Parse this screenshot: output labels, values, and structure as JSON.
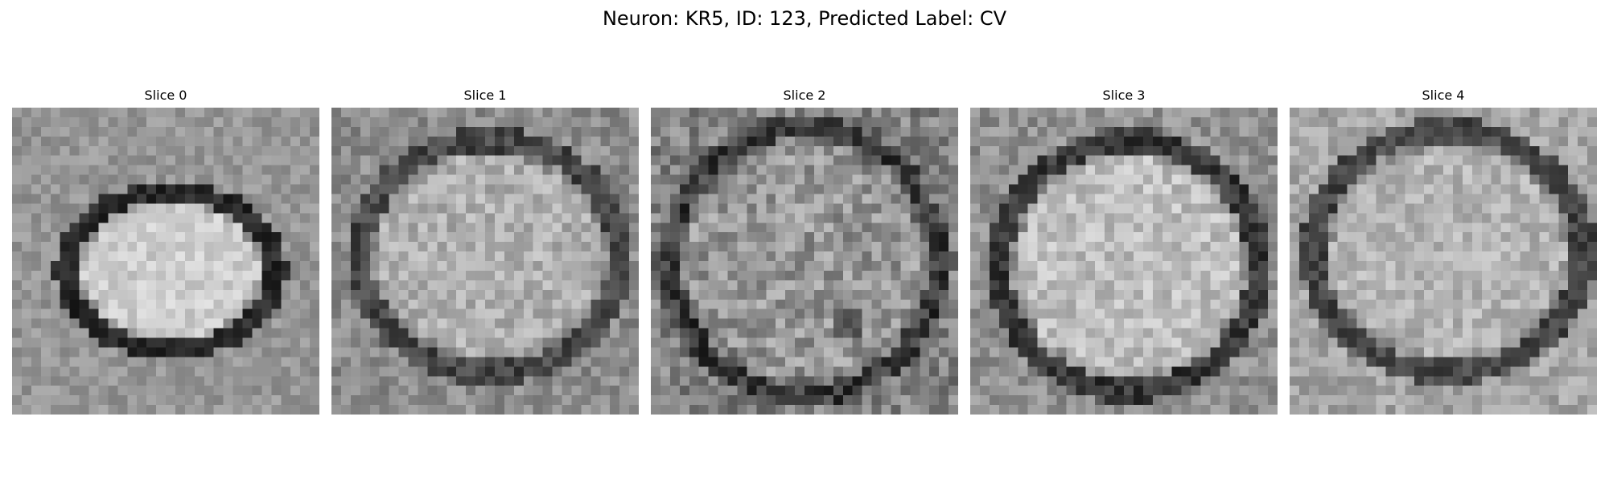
{
  "figure": {
    "title": "Neuron: KR5, ID: 123, Predicted Label: CV"
  },
  "slices": [
    {
      "label": "Slice 0"
    },
    {
      "label": "Slice 1"
    },
    {
      "label": "Slice 2"
    },
    {
      "label": "Slice 3"
    },
    {
      "label": "Slice 4"
    }
  ]
}
